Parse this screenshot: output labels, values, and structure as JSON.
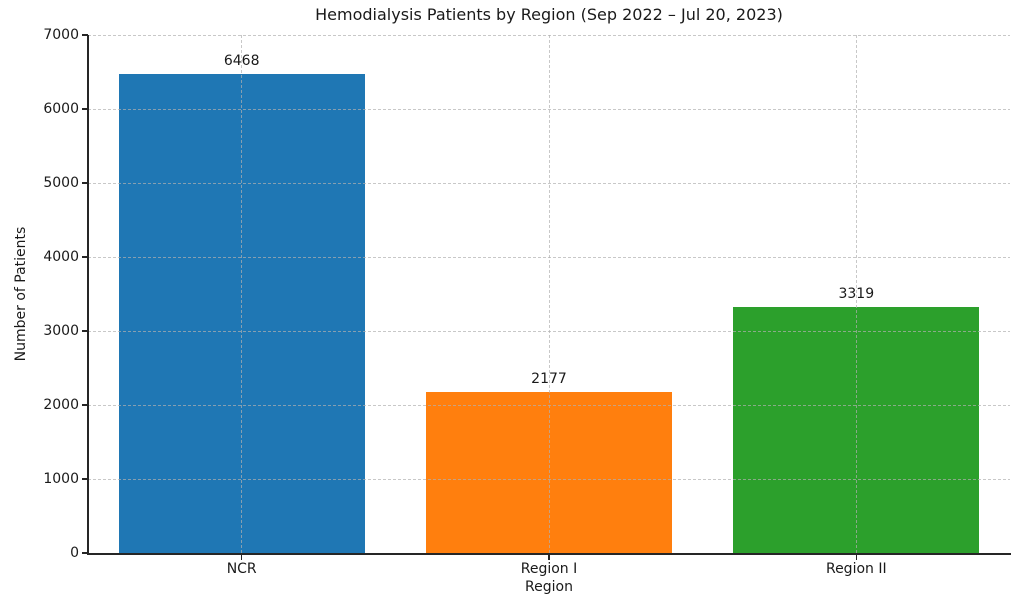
{
  "chart_data": {
    "type": "bar",
    "title": "Hemodialysis Patients by Region (Sep 2022 – Jul 20, 2023)",
    "xlabel": "Region",
    "ylabel": "Number of Patients",
    "categories": [
      "NCR",
      "Region I",
      "Region II"
    ],
    "values": [
      6468,
      2177,
      3319
    ],
    "bar_colors": [
      "#1f77b4",
      "#ff7f0e",
      "#2ca02c"
    ],
    "ylim": [
      0,
      7000
    ],
    "yticks": [
      0,
      1000,
      2000,
      3000,
      4000,
      5000,
      6000,
      7000
    ],
    "value_labels_shown": true,
    "grid": {
      "visible": true,
      "axis": "both",
      "linestyle": "dashed",
      "color": "#b0b0b0"
    },
    "legend_position": "none",
    "background_color": "#ffffff",
    "text_color": "#1a1a1a",
    "spine_color": "#262626"
  }
}
